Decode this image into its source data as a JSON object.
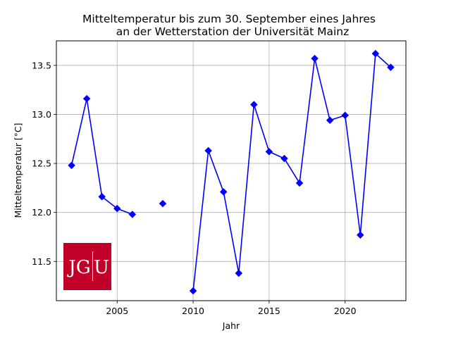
{
  "chart_data": {
    "type": "line",
    "title_line1": "Mitteltemperatur bis zum 30. September eines Jahres",
    "title_line2": "an der Wetterstation der Universität Mainz",
    "xlabel": "Jahr",
    "ylabel": "Mitteltemperatur [°C]",
    "xlim": [
      2001.0,
      2024.0
    ],
    "ylim": [
      11.1,
      13.75
    ],
    "xticks": [
      2005,
      2010,
      2015,
      2020
    ],
    "yticks": [
      11.5,
      12.0,
      12.5,
      13.0,
      13.5
    ],
    "ytick_labels": [
      "11.5",
      "12.0",
      "12.5",
      "13.0",
      "13.5"
    ],
    "grid": true,
    "series": [
      {
        "color": "#0000ff",
        "marker": "diamond",
        "x": [
          2002,
          2003,
          2004,
          2005,
          2006,
          2007,
          2008,
          2009,
          2010,
          2011,
          2012,
          2013,
          2014,
          2015,
          2016,
          2017,
          2018,
          2019,
          2020,
          2021,
          2022,
          2023
        ],
        "y": [
          12.48,
          13.16,
          12.16,
          12.04,
          11.98,
          null,
          12.09,
          null,
          11.2,
          12.63,
          12.21,
          11.38,
          13.1,
          12.62,
          12.55,
          12.3,
          13.57,
          12.94,
          12.99,
          11.77,
          13.62,
          13.48
        ]
      }
    ]
  },
  "logo": {
    "text_left": "JG",
    "text_right": "U",
    "color": "#c1002a"
  }
}
